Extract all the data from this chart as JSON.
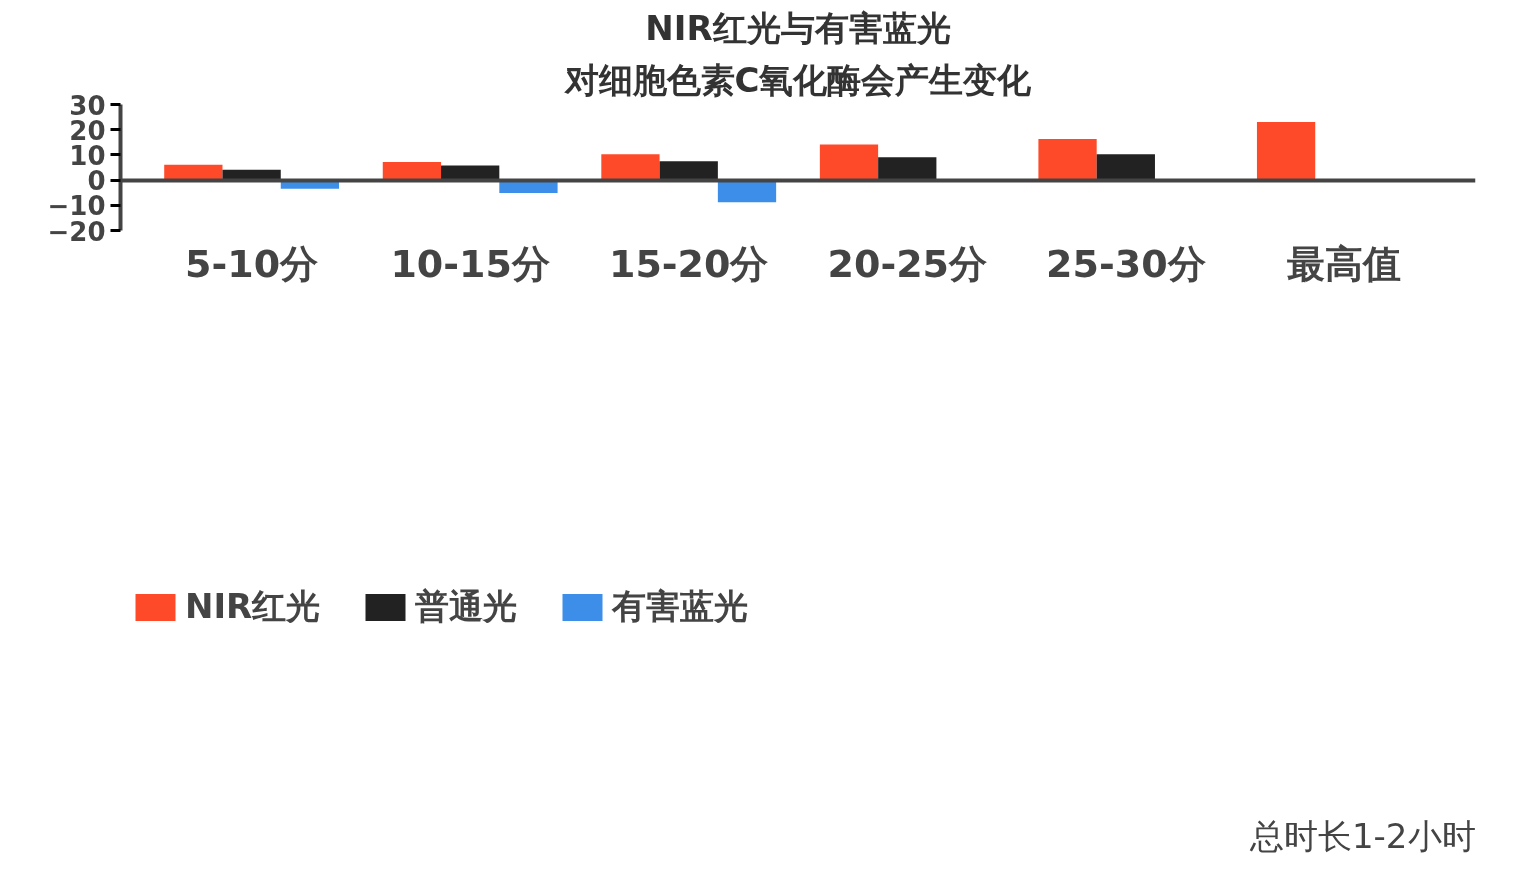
{
  "chart_data": {
    "type": "bar",
    "title": "NIR红光与有害蓝光",
    "subtitle": "对细胞色素C氧化酶会产生变化",
    "categories": [
      "5-10分",
      "10-15分",
      "15-20分",
      "20-25分",
      "25-30分",
      "最高值"
    ],
    "series": [
      {
        "name": "NIR红光",
        "color": "#ff4a2a",
        "values": [
          6.1,
          7.2,
          10.3,
          14.1,
          16.3,
          23.1
        ]
      },
      {
        "name": "普通光",
        "color": "#222222",
        "values": [
          4.1,
          5.8,
          7.5,
          9.1,
          10.3,
          null
        ]
      },
      {
        "name": "有害蓝光",
        "color": "#3d8ee8",
        "values": [
          -3.4,
          -5.1,
          -8.8,
          null,
          null,
          null
        ]
      }
    ],
    "ylim": [
      -20,
      30
    ],
    "yticks": [
      -20,
      -10,
      0,
      10,
      20,
      30
    ],
    "grid": false,
    "legend": "bottom",
    "annotations": [
      "总时长1-2小时"
    ]
  }
}
